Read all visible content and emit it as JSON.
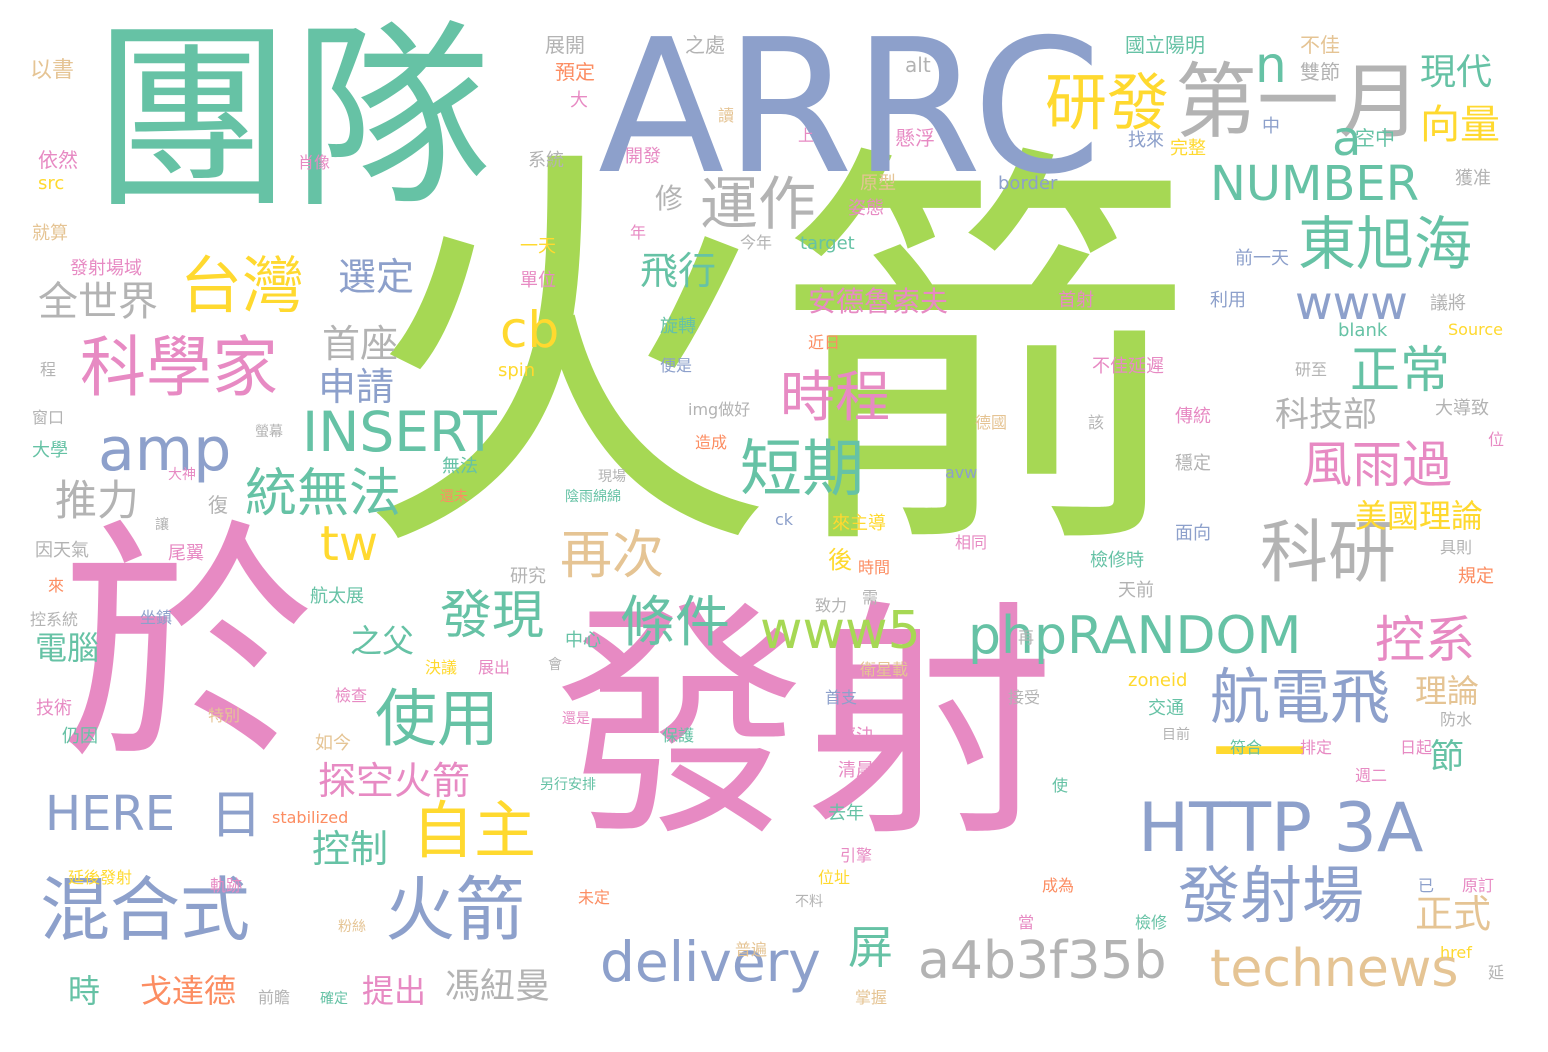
{
  "palette": {
    "green": "#a6d854",
    "teal": "#66c2a5",
    "blue": "#8da0cb",
    "pink": "#e78ac3",
    "yellow": "#ffd92f",
    "tan": "#e5c494",
    "gray": "#b3b3b3",
    "orange": "#fc8d62"
  },
  "words": [
    {
      "t": "火箭",
      "c": "green"
    },
    {
      "t": "團隊",
      "c": "teal"
    },
    {
      "t": "ARRC",
      "c": "blue"
    },
    {
      "t": "發射",
      "c": "pink"
    },
    {
      "t": "於",
      "c": "pink"
    },
    {
      "t": "一",
      "c": "yellow"
    },
    {
      "t": "第一月",
      "c": "gray"
    },
    {
      "t": "研發",
      "c": "yellow"
    },
    {
      "t": "n",
      "c": "teal"
    },
    {
      "t": "a",
      "c": "teal"
    },
    {
      "t": "現代",
      "c": "teal"
    },
    {
      "t": "向量",
      "c": "yellow"
    },
    {
      "t": "NUMBER",
      "c": "teal"
    },
    {
      "t": "運作",
      "c": "gray"
    },
    {
      "t": "東旭海",
      "c": "teal"
    },
    {
      "t": "台灣",
      "c": "yellow"
    },
    {
      "t": "全世界",
      "c": "gray"
    },
    {
      "t": "選定",
      "c": "blue"
    },
    {
      "t": "飛行",
      "c": "teal"
    },
    {
      "t": "修",
      "c": "gray"
    },
    {
      "t": "www",
      "c": "blue"
    },
    {
      "t": "科學家",
      "c": "pink"
    },
    {
      "t": "cb",
      "c": "yellow"
    },
    {
      "t": "首座",
      "c": "gray"
    },
    {
      "t": "正常",
      "c": "teal"
    },
    {
      "t": "amp",
      "c": "blue"
    },
    {
      "t": "申請",
      "c": "blue"
    },
    {
      "t": "時程",
      "c": "pink"
    },
    {
      "t": "INSERT",
      "c": "teal"
    },
    {
      "t": "短期",
      "c": "teal"
    },
    {
      "t": "風雨過",
      "c": "pink"
    },
    {
      "t": "科技部",
      "c": "gray"
    },
    {
      "t": "推力",
      "c": "gray"
    },
    {
      "t": "統無法",
      "c": "teal"
    },
    {
      "t": "tw",
      "c": "yellow"
    },
    {
      "t": "再次",
      "c": "tan"
    },
    {
      "t": "科研",
      "c": "gray"
    },
    {
      "t": "美國理論",
      "c": "yellow"
    },
    {
      "t": "發現",
      "c": "teal"
    },
    {
      "t": "條件",
      "c": "teal"
    },
    {
      "t": "www5",
      "c": "green"
    },
    {
      "t": "phpRANDOM",
      "c": "teal"
    },
    {
      "t": "控系",
      "c": "pink"
    },
    {
      "t": "電腦",
      "c": "teal"
    },
    {
      "t": "之父",
      "c": "teal"
    },
    {
      "t": "使用",
      "c": "teal"
    },
    {
      "t": "航電飛",
      "c": "blue"
    },
    {
      "t": "理論",
      "c": "tan"
    },
    {
      "t": "探空火箭",
      "c": "pink"
    },
    {
      "t": "節",
      "c": "teal"
    },
    {
      "t": "HERE",
      "c": "blue"
    },
    {
      "t": "日",
      "c": "blue"
    },
    {
      "t": "自主",
      "c": "yellow"
    },
    {
      "t": "HTTP 3A",
      "c": "blue"
    },
    {
      "t": "控制",
      "c": "teal"
    },
    {
      "t": "混合式",
      "c": "blue"
    },
    {
      "t": "火箭",
      "c": "blue"
    },
    {
      "t": "發射場",
      "c": "blue"
    },
    {
      "t": "正式",
      "c": "tan"
    },
    {
      "t": "屏",
      "c": "teal"
    },
    {
      "t": "delivery",
      "c": "blue"
    },
    {
      "t": "a4b3f35b",
      "c": "gray"
    },
    {
      "t": "technews",
      "c": "tan"
    },
    {
      "t": "時",
      "c": "teal"
    },
    {
      "t": "戈達德",
      "c": "orange"
    },
    {
      "t": "提出",
      "c": "pink"
    },
    {
      "t": "馮紐曼",
      "c": "gray"
    },
    {
      "t": "安德魯索夫",
      "c": "pink"
    },
    {
      "t": "以書",
      "c": "tan"
    },
    {
      "t": "展開",
      "c": "gray"
    },
    {
      "t": "預定",
      "c": "orange"
    },
    {
      "t": "之處",
      "c": "gray"
    },
    {
      "t": "alt",
      "c": "gray"
    },
    {
      "t": "國立陽明",
      "c": "teal"
    },
    {
      "t": "不佳",
      "c": "tan"
    },
    {
      "t": "雙節",
      "c": "gray"
    },
    {
      "t": "大",
      "c": "pink"
    },
    {
      "t": "讀",
      "c": "tan"
    },
    {
      "t": "上",
      "c": "pink"
    },
    {
      "t": "中",
      "c": "blue"
    },
    {
      "t": "空中",
      "c": "teal"
    },
    {
      "t": "依然",
      "c": "pink"
    },
    {
      "t": "src",
      "c": "yellow"
    },
    {
      "t": "肖像",
      "c": "pink"
    },
    {
      "t": "系統",
      "c": "gray"
    },
    {
      "t": "開發",
      "c": "pink"
    },
    {
      "t": "懸浮",
      "c": "pink"
    },
    {
      "t": "找來",
      "c": "blue"
    },
    {
      "t": "完整",
      "c": "yellow"
    },
    {
      "t": "原型",
      "c": "tan"
    },
    {
      "t": "border",
      "c": "blue"
    },
    {
      "t": "獲准",
      "c": "gray"
    },
    {
      "t": "姿態",
      "c": "pink"
    },
    {
      "t": "就算",
      "c": "tan"
    },
    {
      "t": "一天",
      "c": "yellow"
    },
    {
      "t": "年",
      "c": "pink"
    },
    {
      "t": "今年",
      "c": "gray"
    },
    {
      "t": "target",
      "c": "teal"
    },
    {
      "t": "前一天",
      "c": "blue"
    },
    {
      "t": "發射場域",
      "c": "pink"
    },
    {
      "t": "單位",
      "c": "pink"
    },
    {
      "t": "首射",
      "c": "pink"
    },
    {
      "t": "利用",
      "c": "blue"
    },
    {
      "t": "議將",
      "c": "gray"
    },
    {
      "t": "旋轉",
      "c": "teal"
    },
    {
      "t": "blank",
      "c": "teal"
    },
    {
      "t": "Source",
      "c": "yellow"
    },
    {
      "t": "近日",
      "c": "orange"
    },
    {
      "t": "不佳延遲",
      "c": "pink"
    },
    {
      "t": "研至",
      "c": "gray"
    },
    {
      "t": "程",
      "c": "gray"
    },
    {
      "t": "spin",
      "c": "yellow"
    },
    {
      "t": "便是",
      "c": "blue"
    },
    {
      "t": "窗口",
      "c": "gray"
    },
    {
      "t": "img做好",
      "c": "gray"
    },
    {
      "t": "大導致",
      "c": "gray"
    },
    {
      "t": "傳統",
      "c": "pink"
    },
    {
      "t": "德國",
      "c": "tan"
    },
    {
      "t": "該",
      "c": "gray"
    },
    {
      "t": "螢幕",
      "c": "gray"
    },
    {
      "t": "造成",
      "c": "orange"
    },
    {
      "t": "大學",
      "c": "teal"
    },
    {
      "t": "位",
      "c": "pink"
    },
    {
      "t": "大神",
      "c": "pink"
    },
    {
      "t": "現場",
      "c": "gray"
    },
    {
      "t": "無法",
      "c": "teal"
    },
    {
      "t": "陰雨綿綿",
      "c": "teal"
    },
    {
      "t": "avw",
      "c": "blue"
    },
    {
      "t": "穩定",
      "c": "gray"
    },
    {
      "t": "復",
      "c": "gray"
    },
    {
      "t": "還未",
      "c": "orange"
    },
    {
      "t": "讓",
      "c": "gray"
    },
    {
      "t": "ck",
      "c": "blue"
    },
    {
      "t": "來主導",
      "c": "yellow"
    },
    {
      "t": "面向",
      "c": "blue"
    },
    {
      "t": "因天氣",
      "c": "gray"
    },
    {
      "t": "尾翼",
      "c": "pink"
    },
    {
      "t": "後",
      "c": "yellow"
    },
    {
      "t": "時間",
      "c": "orange"
    },
    {
      "t": "相同",
      "c": "pink"
    },
    {
      "t": "檢修時",
      "c": "teal"
    },
    {
      "t": "具則",
      "c": "gray"
    },
    {
      "t": "來",
      "c": "orange"
    },
    {
      "t": "研究",
      "c": "gray"
    },
    {
      "t": "天前",
      "c": "gray"
    },
    {
      "t": "規定",
      "c": "orange"
    },
    {
      "t": "控系統",
      "c": "gray"
    },
    {
      "t": "航太展",
      "c": "teal"
    },
    {
      "t": "坐鎮",
      "c": "blue"
    },
    {
      "t": "致力",
      "c": "gray"
    },
    {
      "t": "需",
      "c": "gray"
    },
    {
      "t": "中心",
      "c": "teal"
    },
    {
      "t": "再",
      "c": "gray"
    },
    {
      "t": "決議",
      "c": "yellow"
    },
    {
      "t": "展出",
      "c": "pink"
    },
    {
      "t": "會",
      "c": "gray"
    },
    {
      "t": "衛星載",
      "c": "tan"
    },
    {
      "t": "zoneid",
      "c": "yellow"
    },
    {
      "t": "技術",
      "c": "pink"
    },
    {
      "t": "檢查",
      "c": "pink"
    },
    {
      "t": "首支",
      "c": "blue"
    },
    {
      "t": "特別",
      "c": "tan"
    },
    {
      "t": "接受",
      "c": "gray"
    },
    {
      "t": "交通",
      "c": "teal"
    },
    {
      "t": "防水",
      "c": "gray"
    },
    {
      "t": "仍因",
      "c": "teal"
    },
    {
      "t": "如今",
      "c": "tan"
    },
    {
      "t": "還是",
      "c": "pink"
    },
    {
      "t": "保護",
      "c": "teal"
    },
    {
      "t": "經決",
      "c": "pink"
    },
    {
      "t": "目前",
      "c": "gray"
    },
    {
      "t": "符合",
      "c": "teal"
    },
    {
      "t": "排定",
      "c": "pink"
    },
    {
      "t": "日起",
      "c": "pink"
    },
    {
      "t": "另行安排",
      "c": "teal"
    },
    {
      "t": "清晨",
      "c": "pink"
    },
    {
      "t": "週二",
      "c": "pink"
    },
    {
      "t": "使",
      "c": "teal"
    },
    {
      "t": "stabilized",
      "c": "orange"
    },
    {
      "t": "去年",
      "c": "teal"
    },
    {
      "t": "引擎",
      "c": "pink"
    },
    {
      "t": "延後發射",
      "c": "yellow"
    },
    {
      "t": "軌跡",
      "c": "pink"
    },
    {
      "t": "位址",
      "c": "yellow"
    },
    {
      "t": "已",
      "c": "blue"
    },
    {
      "t": "原訂",
      "c": "pink"
    },
    {
      "t": "成為",
      "c": "orange"
    },
    {
      "t": "未定",
      "c": "orange"
    },
    {
      "t": "不料",
      "c": "gray"
    },
    {
      "t": "當",
      "c": "pink"
    },
    {
      "t": "粉絲",
      "c": "tan"
    },
    {
      "t": "檢修",
      "c": "teal"
    },
    {
      "t": "普遍",
      "c": "tan"
    },
    {
      "t": "href",
      "c": "yellow"
    },
    {
      "t": "延",
      "c": "gray"
    },
    {
      "t": "前瞻",
      "c": "gray"
    },
    {
      "t": "確定",
      "c": "teal"
    },
    {
      "t": "掌握",
      "c": "tan"
    }
  ]
}
